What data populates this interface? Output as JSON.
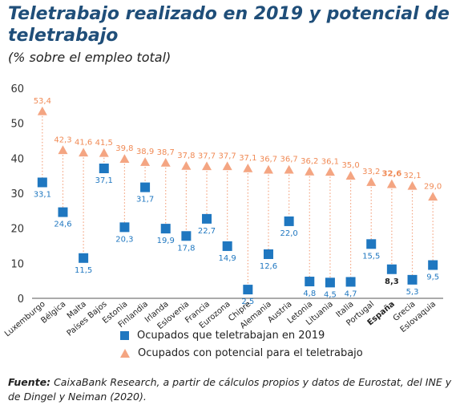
{
  "title": "Teletrabajo realizado en 2019 y potencial de teletrabajo",
  "subtitle": "(% sobre el empleo total)",
  "source_label": "Fuente:",
  "source_text": "CaixaBank Research, a partir de cálculos propios y datos de Eurostat, del INE y de Dingel y Neiman (2020).",
  "colors": {
    "realizado": "#1f77c0",
    "potencial": "#f4a582",
    "potencial_label": "#f08a55",
    "realizado_label": "#1f77c0",
    "highlight_label": "#222222"
  },
  "chart_data": {
    "type": "scatter",
    "title": "Teletrabajo realizado en 2019 y potencial de teletrabajo",
    "subtitle": "(% sobre el empleo total)",
    "ylim": [
      0,
      60
    ],
    "yticks": [
      0,
      10,
      20,
      30,
      40,
      50,
      60
    ],
    "grid": false,
    "legend_position": "bottom",
    "categories": [
      "Luxemburgo",
      "Bélgica",
      "Malta",
      "Países Bajos",
      "Estonia",
      "Finlandia",
      "Irlanda",
      "Eslovenia",
      "Francia",
      "Eurozona",
      "Chipre",
      "Alemania",
      "Austria",
      "Letonia",
      "Lituania",
      "Italia",
      "Portugal",
      "España",
      "Grecia",
      "Eslovaquia"
    ],
    "highlight_category": "España",
    "series": [
      {
        "name": "Ocupados que teletrabajan en 2019",
        "marker": "square",
        "values": [
          33.1,
          24.6,
          11.5,
          37.1,
          20.3,
          31.7,
          19.9,
          17.8,
          22.7,
          14.9,
          2.5,
          12.6,
          22.0,
          4.8,
          4.5,
          4.7,
          15.5,
          8.3,
          5.3,
          9.5
        ],
        "labels": [
          "33,1",
          "24,6",
          "11,5",
          "37,1",
          "20,3",
          "31,7",
          "19,9",
          "17,8",
          "22,7",
          "14,9",
          "2,5",
          "12,6",
          "22,0",
          "4,8",
          "4,5",
          "4,7",
          "15,5",
          "8,3",
          "5,3",
          "9,5"
        ]
      },
      {
        "name": "Ocupados con potencial para el teletrabajo",
        "marker": "triangle",
        "values": [
          53.4,
          42.3,
          41.6,
          41.5,
          39.8,
          38.9,
          38.7,
          37.8,
          37.7,
          37.7,
          37.1,
          36.7,
          36.7,
          36.2,
          36.1,
          35.0,
          33.2,
          32.6,
          32.1,
          29.0
        ],
        "labels": [
          "53,4",
          "42,3",
          "41,6",
          "41,5",
          "39,8",
          "38,9",
          "38,7",
          "37,8",
          "37,7",
          "37,7",
          "37,1",
          "36,7",
          "36,7",
          "36,2",
          "36,1",
          "35,0",
          "33,2",
          "32,6",
          "32,1",
          "29,0"
        ]
      }
    ]
  }
}
